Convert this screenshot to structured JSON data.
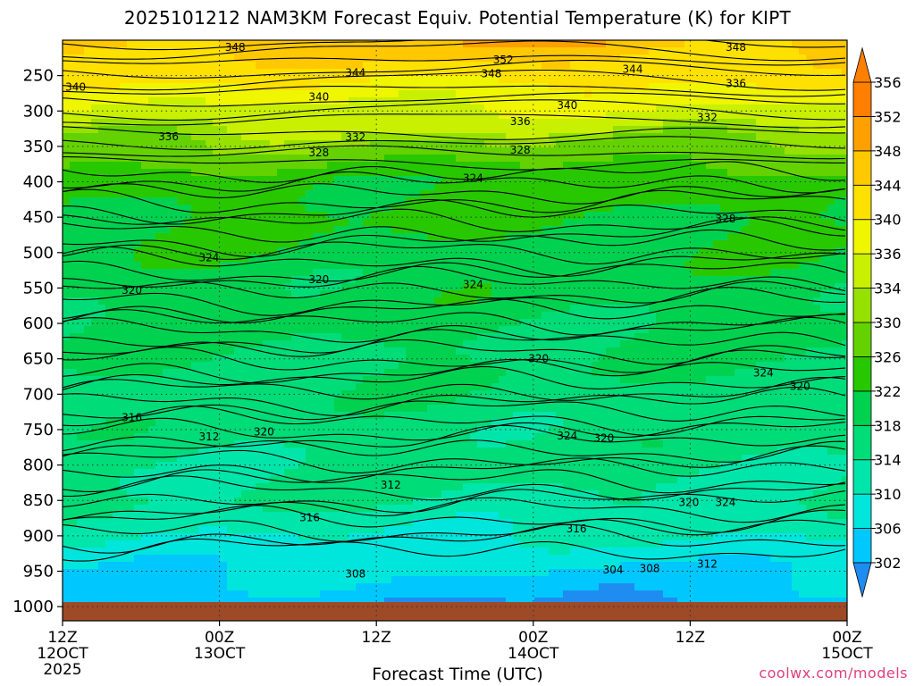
{
  "chart_data": {
    "type": "heatmap",
    "title": "2025101212 NAM3KM Forecast Equiv. Potential Temperature (K) for KIPT",
    "xlabel": "Forecast Time (UTC)",
    "credit": "coolwx.com/models",
    "y_ticks": [
      "250",
      "300",
      "350",
      "400",
      "450",
      "500",
      "550",
      "600",
      "650",
      "700",
      "750",
      "800",
      "850",
      "900",
      "950",
      "1000"
    ],
    "y_tick_values": [
      250,
      300,
      350,
      400,
      450,
      500,
      550,
      600,
      650,
      700,
      750,
      800,
      850,
      900,
      950,
      1000
    ],
    "x_ticks": [
      {
        "hours": 0,
        "top": "12Z",
        "mid": "12OCT",
        "bottom": "2025"
      },
      {
        "hours": 12,
        "top": "00Z",
        "mid": "13OCT",
        "bottom": ""
      },
      {
        "hours": 24,
        "top": "12Z",
        "mid": "",
        "bottom": ""
      },
      {
        "hours": 36,
        "top": "00Z",
        "mid": "14OCT",
        "bottom": ""
      },
      {
        "hours": 48,
        "top": "12Z",
        "mid": "",
        "bottom": ""
      },
      {
        "hours": 60,
        "top": "00Z",
        "mid": "15OCT",
        "bottom": ""
      }
    ],
    "x_range_hours": [
      0,
      60
    ],
    "y_range_hpa": [
      200,
      1020
    ],
    "grid": true,
    "legend": "right colorbar",
    "colorbar": {
      "labels": [
        "302",
        "306",
        "310",
        "314",
        "318",
        "322",
        "326",
        "330",
        "334",
        "336",
        "340",
        "344",
        "348",
        "352",
        "356"
      ],
      "values": [
        302,
        306,
        310,
        314,
        318,
        322,
        326,
        330,
        334,
        336,
        340,
        344,
        348,
        352,
        356
      ],
      "colors": [
        "#1e8cf0",
        "#00c8ff",
        "#00e6dc",
        "#00e6aa",
        "#00dc78",
        "#00d250",
        "#28c800",
        "#64d200",
        "#96e100",
        "#c8f000",
        "#f0f500",
        "#ffe100",
        "#ffc800",
        "#ffa000",
        "#ff7f00"
      ]
    },
    "contour_labels": [
      {
        "label": "348",
        "hours": 13.2,
        "hpa": 210
      },
      {
        "label": "352",
        "hours": 33.7,
        "hpa": 228
      },
      {
        "label": "348",
        "hours": 51.5,
        "hpa": 210
      },
      {
        "label": "344",
        "hours": 22.4,
        "hpa": 246
      },
      {
        "label": "348",
        "hours": 32.8,
        "hpa": 247
      },
      {
        "label": "344",
        "hours": 43.6,
        "hpa": 241
      },
      {
        "label": "340",
        "hours": 1.0,
        "hpa": 266
      },
      {
        "label": "336",
        "hours": 51.5,
        "hpa": 261
      },
      {
        "label": "340",
        "hours": 19.6,
        "hpa": 280
      },
      {
        "label": "340",
        "hours": 38.6,
        "hpa": 292
      },
      {
        "label": "332",
        "hours": 49.3,
        "hpa": 309
      },
      {
        "label": "336",
        "hours": 35.0,
        "hpa": 315
      },
      {
        "label": "336",
        "hours": 8.1,
        "hpa": 336
      },
      {
        "label": "332",
        "hours": 22.4,
        "hpa": 337
      },
      {
        "label": "328",
        "hours": 19.6,
        "hpa": 359
      },
      {
        "label": "328",
        "hours": 35.0,
        "hpa": 355
      },
      {
        "label": "324",
        "hours": 31.4,
        "hpa": 395
      },
      {
        "label": "328",
        "hours": 50.7,
        "hpa": 452
      },
      {
        "label": "324",
        "hours": 11.2,
        "hpa": 507
      },
      {
        "label": "320",
        "hours": 19.6,
        "hpa": 538
      },
      {
        "label": "324",
        "hours": 31.4,
        "hpa": 545
      },
      {
        "label": "320",
        "hours": 5.3,
        "hpa": 553
      },
      {
        "label": "320",
        "hours": 36.4,
        "hpa": 650
      },
      {
        "label": "324",
        "hours": 53.6,
        "hpa": 670
      },
      {
        "label": "320",
        "hours": 56.4,
        "hpa": 689
      },
      {
        "label": "316",
        "hours": 5.3,
        "hpa": 733
      },
      {
        "label": "312",
        "hours": 11.2,
        "hpa": 760
      },
      {
        "label": "320",
        "hours": 15.4,
        "hpa": 753
      },
      {
        "label": "324",
        "hours": 38.6,
        "hpa": 759
      },
      {
        "label": "320",
        "hours": 41.4,
        "hpa": 762
      },
      {
        "label": "312",
        "hours": 25.1,
        "hpa": 828
      },
      {
        "label": "320",
        "hours": 47.9,
        "hpa": 853
      },
      {
        "label": "324",
        "hours": 50.7,
        "hpa": 853
      },
      {
        "label": "316",
        "hours": 18.9,
        "hpa": 874
      },
      {
        "label": "316",
        "hours": 39.3,
        "hpa": 890
      },
      {
        "label": "308",
        "hours": 22.4,
        "hpa": 954
      },
      {
        "label": "304",
        "hours": 42.1,
        "hpa": 948
      },
      {
        "label": "308",
        "hours": 44.9,
        "hpa": 946
      },
      {
        "label": "312",
        "hours": 49.3,
        "hpa": 940
      }
    ]
  }
}
